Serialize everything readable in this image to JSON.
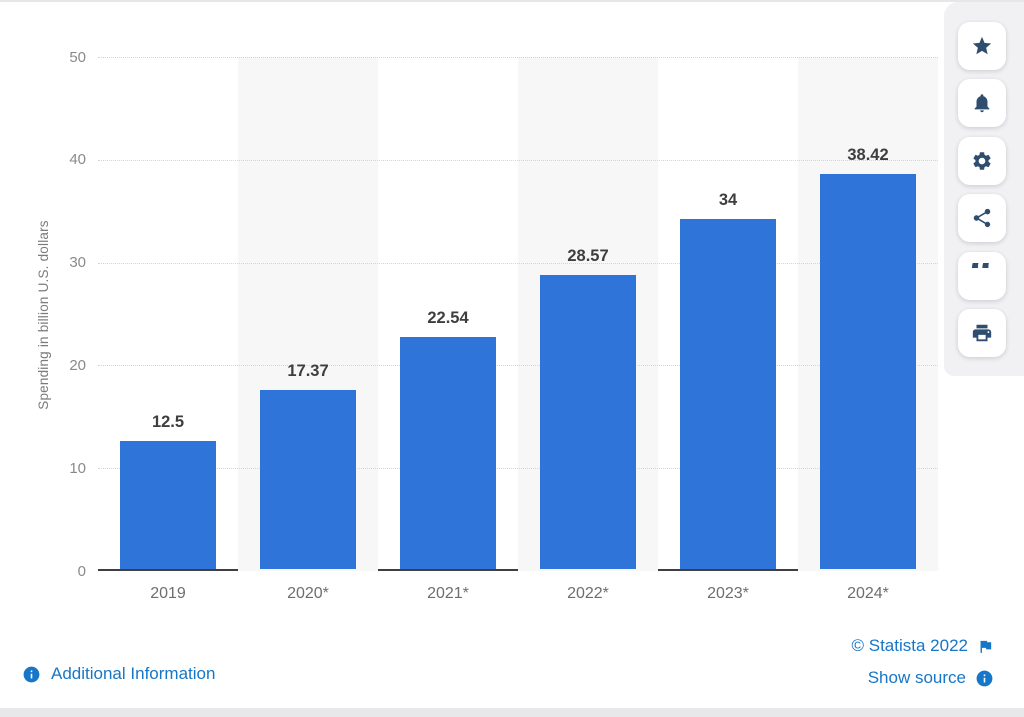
{
  "chart_data": {
    "type": "bar",
    "title": "",
    "categories": [
      "2019",
      "2020*",
      "2021*",
      "2022*",
      "2023*",
      "2024*"
    ],
    "values": [
      12.5,
      17.37,
      22.54,
      28.57,
      34,
      38.42
    ],
    "data_labels": [
      "12.5",
      "17.37",
      "22.54",
      "28.57",
      "34",
      "38.42"
    ],
    "xlabel": "",
    "ylabel": "Spending in billion U.S. dollars",
    "ylim": [
      0,
      50
    ],
    "yticks": [
      0,
      10,
      20,
      30,
      40,
      50
    ],
    "grid": "horizontal dotted gridlines",
    "legend": "none",
    "bar_color": "#2f74d9",
    "band_color": "#f7f7f8",
    "banded_categories": [
      "2020*",
      "2022*",
      "2024*"
    ]
  },
  "toolbar": {
    "icon_color": "#2f4e6f",
    "buttons": [
      {
        "name": "favorite",
        "icon": "star-icon"
      },
      {
        "name": "notification",
        "icon": "bell-icon"
      },
      {
        "name": "settings",
        "icon": "gear-icon"
      },
      {
        "name": "share",
        "icon": "share-icon"
      },
      {
        "name": "cite",
        "icon": "quote-icon"
      },
      {
        "name": "print",
        "icon": "print-icon"
      }
    ]
  },
  "footer": {
    "additional_information": "Additional Information",
    "copyright": "© Statista 2022",
    "show_source": "Show source",
    "link_color": "#1776c7"
  }
}
